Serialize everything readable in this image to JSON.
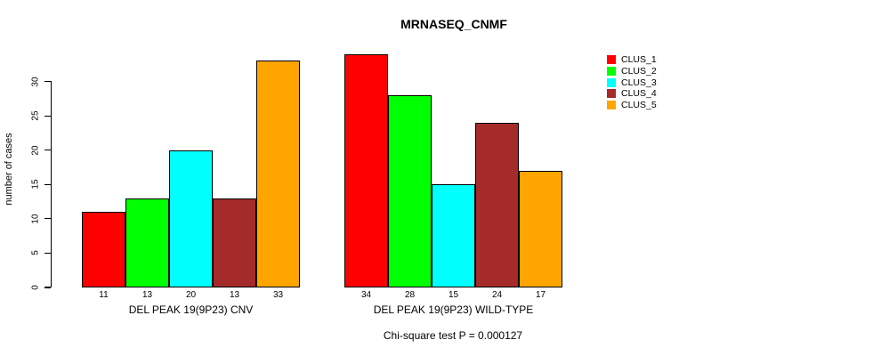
{
  "chart_data": {
    "type": "bar",
    "title": "MRNASEQ_CNMF",
    "ylabel": "number of cases",
    "xlabel": "",
    "categories": [
      "DEL PEAK 19(9P23) CNV",
      "DEL PEAK 19(9P23) WILD-TYPE"
    ],
    "series": [
      {
        "name": "CLUS_1",
        "color": "#ff0000",
        "values": [
          11,
          34
        ]
      },
      {
        "name": "CLUS_2",
        "color": "#00ff00",
        "values": [
          13,
          28
        ]
      },
      {
        "name": "CLUS_3",
        "color": "#00ffff",
        "values": [
          20,
          15
        ]
      },
      {
        "name": "CLUS_4",
        "color": "#a52a2a",
        "values": [
          13,
          24
        ]
      },
      {
        "name": "CLUS_5",
        "color": "#ffa500",
        "values": [
          33,
          17
        ]
      }
    ],
    "bar_value_labels": {
      "DEL PEAK 19(9P23) CNV": [
        11,
        13,
        20,
        13,
        33
      ],
      "DEL PEAK 19(9P23) WILD-TYPE": [
        34,
        28,
        15,
        24,
        17
      ]
    },
    "yticks": [
      0,
      5,
      10,
      15,
      20,
      25,
      30
    ],
    "ylim": [
      0,
      34
    ],
    "grid": false,
    "legend_position": "right",
    "legend_entries": [
      "CLUS_1",
      "CLUS_2",
      "CLUS_3",
      "CLUS_4",
      "CLUS_5"
    ],
    "annotation": "Chi-square test P = 0.000127"
  }
}
